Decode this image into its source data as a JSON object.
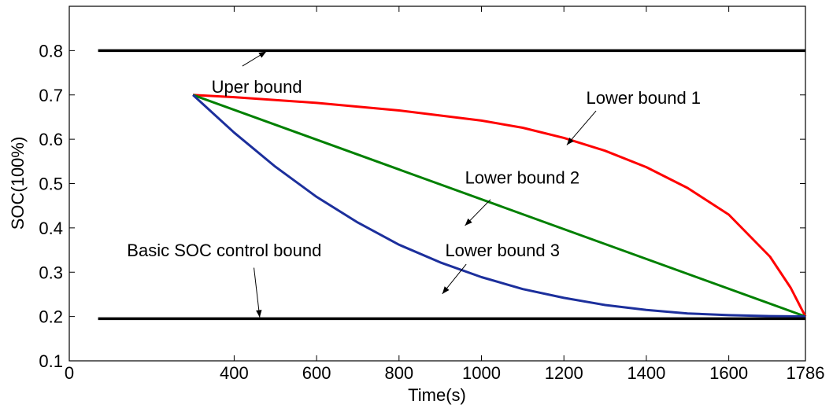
{
  "chart_data": {
    "type": "line",
    "title": "",
    "xlabel": "Time(s)",
    "ylabel": "SOC(100%)",
    "xlim": [
      0,
      1786
    ],
    "ylim": [
      0.1,
      0.9
    ],
    "xticks": [
      0,
      400,
      600,
      800,
      1000,
      1200,
      1400,
      1600,
      1786
    ],
    "xtick_labels": [
      "0",
      "400",
      "600",
      "800",
      "1000",
      "1200",
      "1400",
      "1600",
      "1786"
    ],
    "yticks": [
      0.1,
      0.2,
      0.3,
      0.4,
      0.5,
      0.6,
      0.7,
      0.8
    ],
    "ytick_labels": [
      "0.1",
      "0.2",
      "0.3",
      "0.4",
      "0.5",
      "0.6",
      "0.7",
      "0.8"
    ],
    "grid": false,
    "series": [
      {
        "key": "upper",
        "color": "#000000",
        "x": [
          70,
          1786
        ],
        "y": [
          0.8,
          0.8
        ]
      },
      {
        "key": "lower1",
        "color": "#ff0000",
        "x": [
          300,
          400,
          600,
          800,
          1000,
          1100,
          1200,
          1300,
          1400,
          1500,
          1600,
          1700,
          1750,
          1786
        ],
        "y": [
          0.7,
          0.695,
          0.682,
          0.665,
          0.642,
          0.626,
          0.603,
          0.574,
          0.537,
          0.49,
          0.43,
          0.335,
          0.265,
          0.2
        ]
      },
      {
        "key": "lower2",
        "color": "#008000",
        "x": [
          300,
          1786
        ],
        "y": [
          0.7,
          0.2
        ]
      },
      {
        "key": "lower3",
        "color": "#1c2f9c",
        "x": [
          300,
          400,
          500,
          600,
          700,
          800,
          900,
          1000,
          1100,
          1200,
          1300,
          1400,
          1500,
          1600,
          1700,
          1786
        ],
        "y": [
          0.7,
          0.615,
          0.538,
          0.47,
          0.412,
          0.362,
          0.322,
          0.289,
          0.262,
          0.242,
          0.226,
          0.215,
          0.207,
          0.203,
          0.201,
          0.2
        ]
      },
      {
        "key": "basic",
        "color": "#000000",
        "x": [
          70,
          1786
        ],
        "y": [
          0.195,
          0.195
        ]
      }
    ],
    "annotations": [
      {
        "key": "upper",
        "text": "Uper bound",
        "text_x": 345,
        "text_y": 0.705,
        "arrow_from": [
          420,
          0.765
        ],
        "arrow_to": [
          478,
          0.798
        ]
      },
      {
        "key": "lower1",
        "text": "Lower bound 1",
        "text_x": 1254,
        "text_y": 0.68,
        "arrow_from": [
          1278,
          0.664
        ],
        "arrow_to": [
          1207,
          0.587
        ]
      },
      {
        "key": "lower2",
        "text": "Lower bound 2",
        "text_x": 960,
        "text_y": 0.5,
        "arrow_from": [
          1022,
          0.464
        ],
        "arrow_to": [
          960,
          0.405
        ]
      },
      {
        "key": "lower3",
        "text": "Lower bound 3",
        "text_x": 912,
        "text_y": 0.336,
        "arrow_from": [
          963,
          0.318
        ],
        "arrow_to": [
          905,
          0.251
        ]
      },
      {
        "key": "basic",
        "text": "Basic SOC control bound",
        "text_x": 140,
        "text_y": 0.336,
        "arrow_from": [
          448,
          0.31
        ],
        "arrow_to": [
          462,
          0.198
        ]
      }
    ]
  }
}
